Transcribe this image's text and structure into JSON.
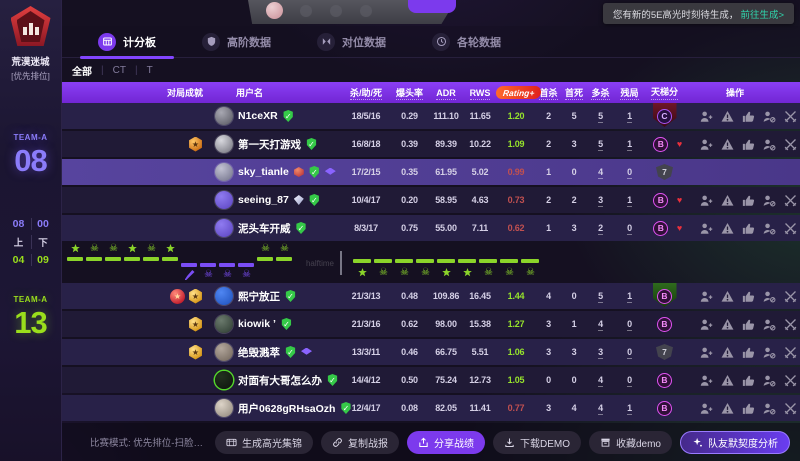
{
  "colors": {
    "accent_purple": "#7c3aed",
    "team_purple": "#8b7cfa",
    "team_green": "#9ade1c",
    "rating_good": "#96e32c",
    "rating_bad": "#c05050",
    "rank_pink": "#e052f2",
    "link_teal": "#2fd6ad",
    "header_purple": "#7f35e8"
  },
  "toast": {
    "text": "您有新的5E高光时刻待生成，",
    "link": "前往生成>"
  },
  "tabs": [
    {
      "label": "计分板",
      "icon": "scoreboard-icon",
      "active": true
    },
    {
      "label": "高阶数据",
      "icon": "shield-icon",
      "active": false
    },
    {
      "label": "对位数据",
      "icon": "versus-icon",
      "active": false
    },
    {
      "label": "各轮数据",
      "icon": "clock-icon",
      "active": false
    }
  ],
  "sidebar": {
    "map_name": "荒漠迷城",
    "mode_tag": "[优先排位]",
    "team_a_label": "TEAM-A",
    "team_a_score": "08",
    "team_b_label": "TEAM-A",
    "team_b_score": "13",
    "halves": {
      "a_first": "08",
      "a_second": "00",
      "first_label": "上",
      "second_label": "下",
      "b_first": "04",
      "b_second": "09"
    }
  },
  "filters": [
    {
      "label": "全部",
      "active": true
    },
    {
      "label": "CT",
      "active": false
    },
    {
      "label": "T",
      "active": false
    }
  ],
  "table": {
    "headers": [
      {
        "key": "ach",
        "label": "对局成就",
        "dotted": false
      },
      {
        "key": "player",
        "label": "用户名",
        "dotted": false
      },
      {
        "key": "kad",
        "label": "杀/助/死",
        "dotted": true
      },
      {
        "key": "hs",
        "label": "爆头率",
        "dotted": true
      },
      {
        "key": "adr",
        "label": "ADR",
        "dotted": true
      },
      {
        "key": "rws",
        "label": "RWS",
        "dotted": true
      },
      {
        "key": "rating",
        "label": "Rating+",
        "badge": true
      },
      {
        "key": "fk",
        "label": "首杀",
        "dotted": true
      },
      {
        "key": "fd",
        "label": "首死",
        "dotted": true
      },
      {
        "key": "mk",
        "label": "多杀",
        "dotted": true
      },
      {
        "key": "clutch",
        "label": "残局",
        "dotted": true
      },
      {
        "key": "ladder",
        "label": "天梯分",
        "dotted": true
      },
      {
        "key": "actions",
        "label": "操作",
        "dotted": false
      }
    ],
    "row_actions": [
      "add-friend-icon",
      "report-icon",
      "like-icon",
      "block-user-icon",
      "challenge-icon"
    ],
    "team_a_rows": [
      {
        "name": "N1ceXR",
        "medals": [],
        "badges": [
          "verified"
        ],
        "avatar": [
          "#a8a8b2",
          "#55555f"
        ],
        "kad": "18/5/16",
        "hs": "0.29",
        "adr": "111.10",
        "rws": "11.65",
        "rating": "1.20",
        "rating_good": true,
        "fk": "2",
        "fd": "5",
        "mk": "5",
        "clutch": "1",
        "rank": "C",
        "rank_style": "banner-red",
        "heart": false,
        "self": false,
        "highlight": false
      },
      {
        "name": "第一天打游戏",
        "medals": [
          "orange"
        ],
        "badges": [
          "verified"
        ],
        "avatar": [
          "#d8d8de",
          "#6e6e78"
        ],
        "kad": "16/8/18",
        "hs": "0.39",
        "adr": "89.39",
        "rws": "10.22",
        "rating": "1.09",
        "rating_good": true,
        "fk": "2",
        "fd": "3",
        "mk": "5",
        "clutch": "1",
        "rank": "B",
        "rank_style": "plain",
        "heart": true,
        "self": false,
        "highlight": false
      },
      {
        "name": "sky_tianle",
        "medals": [],
        "badges": [
          "gem",
          "verified",
          "cap"
        ],
        "avatar": [
          "#c2c2d2",
          "#6e6e88"
        ],
        "kad": "17/2/15",
        "hs": "0.35",
        "adr": "61.95",
        "rws": "5.02",
        "rating": "0.99",
        "rating_good": false,
        "fk": "1",
        "fd": "0",
        "mk": "4",
        "clutch": "0",
        "rank": "7",
        "rank_style": "shield",
        "heart": false,
        "self": true,
        "highlight": true
      },
      {
        "name": "seeing_87",
        "medals": [],
        "badges": [
          "diamond",
          "verified"
        ],
        "avatar": [
          "#8f7bf0",
          "#5a43c0"
        ],
        "kad": "10/4/17",
        "hs": "0.20",
        "adr": "58.95",
        "rws": "4.63",
        "rating": "0.73",
        "rating_good": false,
        "fk": "2",
        "fd": "2",
        "mk": "3",
        "clutch": "1",
        "rank": "B",
        "rank_style": "plain",
        "heart": true,
        "self": false,
        "highlight": false
      },
      {
        "name": "泥头车开威",
        "medals": [],
        "badges": [
          "verified"
        ],
        "avatar": [
          "#8f7bf0",
          "#5a43c0"
        ],
        "kad": "8/3/17",
        "hs": "0.75",
        "adr": "55.00",
        "rws": "7.11",
        "rating": "0.62",
        "rating_good": false,
        "fk": "1",
        "fd": "3",
        "mk": "2",
        "clutch": "0",
        "rank": "B",
        "rank_style": "plain",
        "heart": true,
        "self": false,
        "highlight": false
      }
    ],
    "team_b_rows": [
      {
        "name": "熙宁放正",
        "medals": [
          "red",
          "gold"
        ],
        "badges": [
          "verified"
        ],
        "avatar": [
          "#4f86f2",
          "#1d4fba"
        ],
        "kad": "21/3/13",
        "hs": "0.48",
        "adr": "109.86",
        "rws": "16.45",
        "rating": "1.44",
        "rating_good": true,
        "fk": "4",
        "fd": "0",
        "mk": "5",
        "clutch": "1",
        "rank": "B",
        "rank_style": "banner-green",
        "heart": false,
        "self": false,
        "highlight": false
      },
      {
        "name": "kiowik ’",
        "medals": [
          "gold"
        ],
        "badges": [
          "verified"
        ],
        "avatar": [
          "#6b7a6d",
          "#2c3a30"
        ],
        "kad": "21/3/16",
        "hs": "0.62",
        "adr": "98.00",
        "rws": "15.38",
        "rating": "1.27",
        "rating_good": true,
        "fk": "3",
        "fd": "1",
        "mk": "4",
        "clutch": "0",
        "rank": "B",
        "rank_style": "plain",
        "heart": false,
        "self": false,
        "highlight": false
      },
      {
        "name": "绝毁溅萃",
        "medals": [
          "gold"
        ],
        "badges": [
          "verified",
          "cap"
        ],
        "avatar": [
          "#b3a79c",
          "#6e6258"
        ],
        "kad": "13/3/11",
        "hs": "0.46",
        "adr": "66.75",
        "rws": "5.51",
        "rating": "1.06",
        "rating_good": true,
        "fk": "3",
        "fd": "3",
        "mk": "3",
        "clutch": "0",
        "rank": "7",
        "rank_style": "shield",
        "heart": false,
        "self": false,
        "highlight": false
      },
      {
        "name": "对面有大哥怎么办",
        "medals": [],
        "badges": [
          "verified"
        ],
        "avatar": [
          "#22301f",
          "#0d140c"
        ],
        "ring": "#54d62a",
        "kad": "14/4/12",
        "hs": "0.50",
        "adr": "75.24",
        "rws": "12.73",
        "rating": "1.05",
        "rating_good": true,
        "fk": "0",
        "fd": "0",
        "mk": "4",
        "clutch": "0",
        "rank": "B",
        "rank_style": "plain",
        "heart": false,
        "self": false,
        "highlight": false
      },
      {
        "name": "用户0628gRHsaOzh",
        "medals": [],
        "badges": [
          "verified"
        ],
        "avatar": [
          "#ddd4c8",
          "#8d8478"
        ],
        "kad": "12/4/17",
        "hs": "0.08",
        "adr": "82.05",
        "rws": "11.41",
        "rating": "0.77",
        "rating_good": false,
        "fk": "3",
        "fd": "4",
        "mk": "4",
        "clutch": "1",
        "rank": "B",
        "rank_style": "plain",
        "heart": false,
        "self": false,
        "highlight": false
      }
    ]
  },
  "timeline": {
    "halftime_label": "halftime",
    "first_half": [
      {
        "team": "green",
        "icon": "spark"
      },
      {
        "team": "green",
        "icon": "skull"
      },
      {
        "team": "green",
        "icon": "skull"
      },
      {
        "team": "green",
        "icon": "spark"
      },
      {
        "team": "green",
        "icon": "skull"
      },
      {
        "team": "green",
        "icon": "spark"
      },
      {
        "team": "purple",
        "icon": "knife"
      },
      {
        "team": "purple",
        "icon": "skull"
      },
      {
        "team": "purple",
        "icon": "skull"
      },
      {
        "team": "purple",
        "icon": "skull"
      },
      {
        "team": "green",
        "icon": "skull"
      },
      {
        "team": "green",
        "icon": "skull"
      }
    ],
    "second_half": [
      {
        "team": "green",
        "icon": "spark"
      },
      {
        "team": "green",
        "icon": "skull"
      },
      {
        "team": "green",
        "icon": "skull"
      },
      {
        "team": "green",
        "icon": "skull"
      },
      {
        "team": "green",
        "icon": "spark"
      },
      {
        "team": "green",
        "icon": "spark"
      },
      {
        "team": "green",
        "icon": "skull"
      },
      {
        "team": "green",
        "icon": "skull"
      },
      {
        "team": "green",
        "icon": "skull"
      }
    ]
  },
  "footer": {
    "info": "比赛模式: 优先排位-扫脸受信对局 地图: 荒漠迷城 服务器: 深圳 比赛...",
    "buttons": [
      {
        "label": "生成高光集锦",
        "icon": "film-icon",
        "style": "dark"
      },
      {
        "label": "复制战报",
        "icon": "link-icon",
        "style": "dark"
      },
      {
        "label": "分享战绩",
        "icon": "share-icon",
        "style": "primary"
      },
      {
        "label": "下载DEMO",
        "icon": "download-icon",
        "style": "dark"
      },
      {
        "label": "收藏demo",
        "icon": "archive-icon",
        "style": "dark"
      },
      {
        "label": "队友默契度分析",
        "icon": "sparkle-icon",
        "style": "outline"
      }
    ]
  }
}
